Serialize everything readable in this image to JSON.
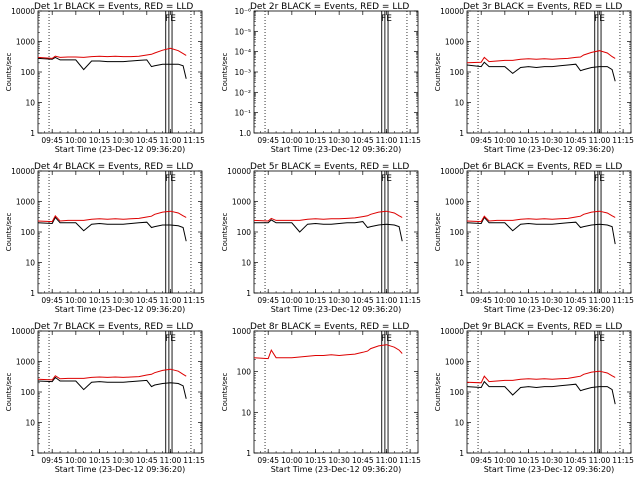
{
  "page": {
    "title_suffix": " BLACK = Events, RED = LLD",
    "ylabel": "Counts/sec",
    "xlabel": "Start Time (23-Dec-12 09:36:20)",
    "fe_label": "FE"
  },
  "colors": {
    "events": "#000000",
    "lld": "#dd0000",
    "axis": "#000000",
    "background": "#ffffff"
  },
  "chart_data": [
    {
      "type": "line",
      "title": "Det 1r",
      "ylog": true,
      "ylim": [
        1,
        10000
      ],
      "yticks": [
        1,
        10,
        100,
        1000,
        10000
      ],
      "xticks": [
        "09:45",
        "10:00",
        "10:15",
        "10:30",
        "10:45",
        "11:00",
        "11:15"
      ],
      "x": [
        "09:36",
        "09:45",
        "09:47",
        "09:50",
        "09:55",
        "10:00",
        "10:05",
        "10:10",
        "10:15",
        "10:20",
        "10:25",
        "10:30",
        "10:35",
        "10:40",
        "10:45",
        "10:48",
        "10:50",
        "10:55",
        "11:00",
        "11:05",
        "11:08",
        "11:10"
      ],
      "series": [
        {
          "name": "BLACK = Events",
          "values": [
            280,
            260,
            300,
            250,
            250,
            250,
            120,
            230,
            230,
            220,
            220,
            220,
            230,
            240,
            250,
            150,
            160,
            180,
            180,
            180,
            160,
            60
          ]
        },
        {
          "name": "RED = LLD",
          "values": [
            300,
            280,
            330,
            300,
            310,
            310,
            300,
            320,
            330,
            320,
            330,
            320,
            320,
            330,
            360,
            380,
            420,
            520,
            600,
            500,
            400,
            350
          ]
        }
      ]
    },
    {
      "type": "line",
      "title": "Det 2r",
      "ylog": true,
      "ylim": [
        1,
        1e-06
      ],
      "yticks": [
        "1.0",
        "10⁻¹",
        "10⁻²",
        "10⁻³",
        "10⁻⁴",
        "10⁻⁵",
        "10⁻⁶"
      ],
      "xticks": [
        "09:45",
        "10:00",
        "10:15",
        "10:30",
        "10:45",
        "11:00",
        "11:15"
      ],
      "x": [],
      "series": []
    },
    {
      "type": "line",
      "title": "Det 3r",
      "ylog": true,
      "ylim": [
        1,
        10000
      ],
      "yticks": [
        1,
        10,
        100,
        1000,
        10000
      ],
      "xticks": [
        "09:45",
        "10:00",
        "10:15",
        "10:30",
        "10:45",
        "11:00",
        "11:15"
      ],
      "x": [
        "09:36",
        "09:45",
        "09:47",
        "09:50",
        "09:55",
        "10:00",
        "10:05",
        "10:10",
        "10:15",
        "10:20",
        "10:25",
        "10:30",
        "10:35",
        "10:40",
        "10:45",
        "10:48",
        "10:50",
        "10:55",
        "11:00",
        "11:05",
        "11:08",
        "11:10"
      ],
      "series": [
        {
          "name": "BLACK = Events",
          "values": [
            170,
            150,
            210,
            150,
            150,
            150,
            90,
            140,
            150,
            140,
            150,
            150,
            160,
            170,
            180,
            110,
            120,
            140,
            150,
            150,
            120,
            50
          ]
        },
        {
          "name": "RED = LLD",
          "values": [
            200,
            210,
            300,
            220,
            230,
            240,
            240,
            260,
            270,
            260,
            270,
            260,
            270,
            280,
            300,
            310,
            360,
            440,
            500,
            420,
            320,
            280
          ]
        }
      ]
    },
    {
      "type": "line",
      "title": "Det 4r",
      "ylog": true,
      "ylim": [
        1,
        10000
      ],
      "yticks": [
        1,
        10,
        100,
        1000,
        10000
      ],
      "xticks": [
        "09:45",
        "10:00",
        "10:15",
        "10:30",
        "10:45",
        "11:00",
        "11:15"
      ],
      "x": [
        "09:36",
        "09:45",
        "09:47",
        "09:50",
        "09:55",
        "10:00",
        "10:05",
        "10:10",
        "10:15",
        "10:20",
        "10:25",
        "10:30",
        "10:35",
        "10:40",
        "10:45",
        "10:48",
        "10:50",
        "10:55",
        "11:00",
        "11:05",
        "11:08",
        "11:10"
      ],
      "series": [
        {
          "name": "BLACK = Events",
          "values": [
            200,
            190,
            300,
            200,
            200,
            200,
            110,
            180,
            190,
            180,
            180,
            180,
            190,
            200,
            210,
            140,
            150,
            170,
            170,
            160,
            140,
            50
          ]
        },
        {
          "name": "RED = LLD",
          "values": [
            230,
            220,
            340,
            230,
            240,
            240,
            240,
            260,
            270,
            260,
            270,
            260,
            270,
            280,
            310,
            330,
            380,
            450,
            480,
            420,
            340,
            300
          ]
        }
      ]
    },
    {
      "type": "line",
      "title": "Det 5r",
      "ylog": true,
      "ylim": [
        1,
        10000
      ],
      "yticks": [
        1,
        10,
        100,
        1000,
        10000
      ],
      "xticks": [
        "09:45",
        "10:00",
        "10:15",
        "10:30",
        "10:45",
        "11:00",
        "11:15"
      ],
      "x": [
        "09:36",
        "09:45",
        "09:47",
        "09:50",
        "09:55",
        "10:00",
        "10:05",
        "10:10",
        "10:15",
        "10:20",
        "10:25",
        "10:30",
        "10:35",
        "10:40",
        "10:45",
        "10:48",
        "10:50",
        "10:55",
        "11:00",
        "11:05",
        "11:08",
        "11:10"
      ],
      "series": [
        {
          "name": "BLACK = Events",
          "values": [
            200,
            200,
            250,
            200,
            200,
            200,
            100,
            180,
            190,
            180,
            180,
            190,
            200,
            200,
            220,
            140,
            150,
            170,
            180,
            170,
            150,
            50
          ]
        },
        {
          "name": "RED = LLD",
          "values": [
            240,
            230,
            280,
            240,
            240,
            240,
            240,
            260,
            270,
            260,
            270,
            270,
            280,
            290,
            320,
            340,
            380,
            450,
            480,
            420,
            340,
            300
          ]
        }
      ]
    },
    {
      "type": "line",
      "title": "Det 6r",
      "ylog": true,
      "ylim": [
        1,
        10000
      ],
      "yticks": [
        1,
        10,
        100,
        1000,
        10000
      ],
      "xticks": [
        "09:45",
        "10:00",
        "10:15",
        "10:30",
        "10:45",
        "11:00",
        "11:15"
      ],
      "x": [
        "09:36",
        "09:45",
        "09:47",
        "09:50",
        "09:55",
        "10:00",
        "10:05",
        "10:10",
        "10:15",
        "10:20",
        "10:25",
        "10:30",
        "10:35",
        "10:40",
        "10:45",
        "10:48",
        "10:50",
        "10:55",
        "11:00",
        "11:05",
        "11:08",
        "11:10"
      ],
      "series": [
        {
          "name": "BLACK = Events",
          "values": [
            200,
            190,
            300,
            200,
            200,
            200,
            110,
            180,
            190,
            180,
            180,
            180,
            190,
            200,
            210,
            140,
            150,
            170,
            180,
            170,
            150,
            40
          ]
        },
        {
          "name": "RED = LLD",
          "values": [
            230,
            220,
            330,
            230,
            240,
            240,
            240,
            260,
            270,
            260,
            270,
            260,
            270,
            280,
            310,
            330,
            380,
            450,
            480,
            420,
            340,
            300
          ]
        }
      ]
    },
    {
      "type": "line",
      "title": "Det 7r",
      "ylog": true,
      "ylim": [
        1,
        10000
      ],
      "yticks": [
        1,
        10,
        100,
        1000,
        10000
      ],
      "xticks": [
        "09:45",
        "10:00",
        "10:15",
        "10:30",
        "10:45",
        "11:00",
        "11:15"
      ],
      "x": [
        "09:36",
        "09:45",
        "09:47",
        "09:50",
        "09:55",
        "10:00",
        "10:05",
        "10:10",
        "10:15",
        "10:20",
        "10:25",
        "10:30",
        "10:35",
        "10:40",
        "10:45",
        "10:48",
        "10:50",
        "10:55",
        "11:00",
        "11:05",
        "11:08",
        "11:10"
      ],
      "series": [
        {
          "name": "BLACK = Events",
          "values": [
            230,
            220,
            300,
            230,
            230,
            230,
            120,
            210,
            220,
            210,
            210,
            210,
            220,
            230,
            240,
            150,
            170,
            190,
            200,
            190,
            160,
            60
          ]
        },
        {
          "name": "RED = LLD",
          "values": [
            260,
            250,
            340,
            270,
            280,
            280,
            280,
            300,
            310,
            300,
            310,
            300,
            310,
            320,
            360,
            380,
            430,
            510,
            560,
            480,
            380,
            330
          ]
        }
      ]
    },
    {
      "type": "line",
      "title": "Det 8r",
      "ylog": true,
      "ylim": [
        1,
        1000
      ],
      "yticks": [
        1,
        10,
        100,
        1000
      ],
      "xticks": [
        "09:45",
        "10:00",
        "10:15",
        "10:30",
        "10:45",
        "11:00",
        "11:15"
      ],
      "x": [
        "09:36",
        "09:45",
        "09:47",
        "09:50",
        "09:55",
        "10:00",
        "10:05",
        "10:10",
        "10:15",
        "10:20",
        "10:25",
        "10:30",
        "10:35",
        "10:40",
        "10:45",
        "10:48",
        "10:50",
        "10:55",
        "11:00",
        "11:05",
        "11:08",
        "11:10"
      ],
      "series": [
        {
          "name": "RED = LLD",
          "values": [
            220,
            210,
            340,
            220,
            220,
            220,
            230,
            240,
            250,
            250,
            260,
            250,
            260,
            270,
            300,
            320,
            370,
            430,
            460,
            400,
            340,
            280
          ]
        }
      ]
    },
    {
      "type": "line",
      "title": "Det 9r",
      "ylog": true,
      "ylim": [
        1,
        10000
      ],
      "yticks": [
        1,
        10,
        100,
        1000,
        10000
      ],
      "xticks": [
        "09:45",
        "10:00",
        "10:15",
        "10:30",
        "10:45",
        "11:00",
        "11:15"
      ],
      "x": [
        "09:36",
        "09:45",
        "09:47",
        "09:50",
        "09:55",
        "10:00",
        "10:05",
        "10:10",
        "10:15",
        "10:20",
        "10:25",
        "10:30",
        "10:35",
        "10:40",
        "10:45",
        "10:48",
        "10:50",
        "10:55",
        "11:00",
        "11:05",
        "11:08",
        "11:10"
      ],
      "series": [
        {
          "name": "BLACK = Events",
          "values": [
            150,
            140,
            220,
            150,
            150,
            150,
            80,
            140,
            150,
            140,
            150,
            150,
            160,
            170,
            180,
            110,
            120,
            140,
            150,
            150,
            120,
            40
          ]
        },
        {
          "name": "RED = LLD",
          "values": [
            210,
            200,
            330,
            220,
            230,
            240,
            240,
            260,
            270,
            260,
            270,
            260,
            270,
            280,
            310,
            330,
            380,
            450,
            480,
            420,
            340,
            300
          ]
        }
      ]
    }
  ]
}
